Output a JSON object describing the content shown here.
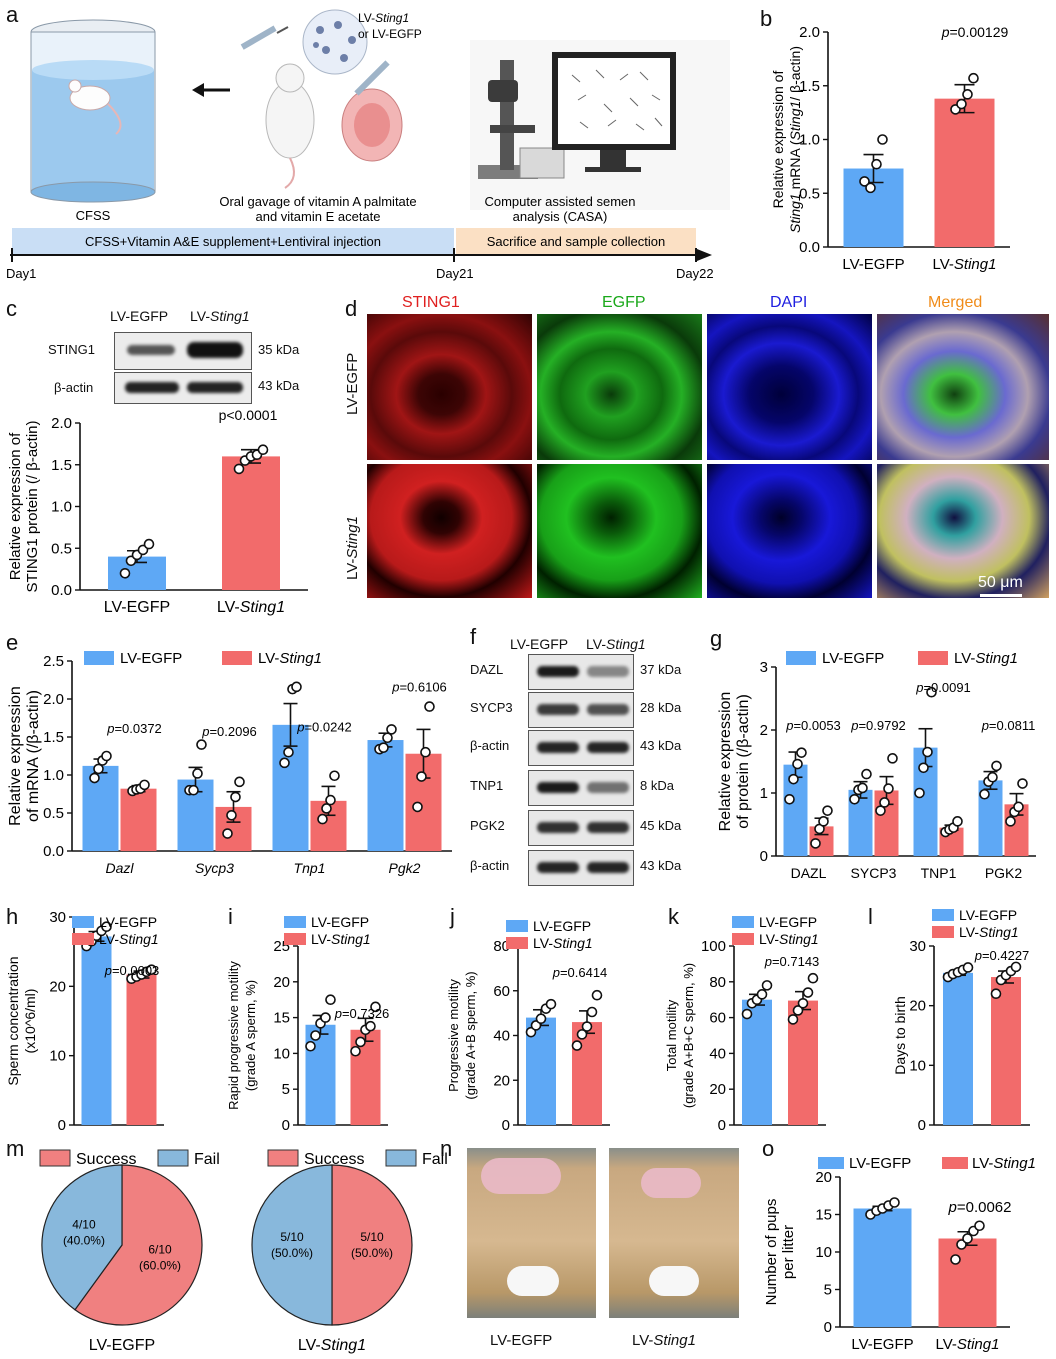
{
  "panel_letters": [
    "a",
    "b",
    "c",
    "d",
    "e",
    "f",
    "g",
    "h",
    "i",
    "j",
    "k",
    "l",
    "m",
    "n",
    "o"
  ],
  "colors": {
    "egfp": "#5ea8f5",
    "sting": "#f26b6b",
    "pie_success": "#f08080",
    "pie_fail": "#88b8dc",
    "timeline_blue": "#c9def5",
    "timeline_peach": "#fbe0c4"
  },
  "panel_a": {
    "cfss_label": "CFSS",
    "injection_label_1": "LV-",
    "injection_label_gene": "Sting1",
    "injection_label_2": "or LV-EGFP",
    "gavage_line1": "Oral gavage of vitamin A palmitate",
    "gavage_line2": "and  vitamin E acetate",
    "casa_line1": "Computer assisted semen",
    "casa_line2": "analysis (CASA)",
    "bar1": "CFSS+Vitamin A&E supplement+Lentiviral injection",
    "bar2": "Sacrifice and sample collection",
    "day1": "Day1",
    "day21": "Day21",
    "day22": "Day22"
  },
  "panel_c_blot": {
    "lanes": [
      "LV-EGFP",
      "LV-Sting1"
    ],
    "rows": [
      {
        "name": "STING1",
        "kda": "35 kDa"
      },
      {
        "name": "β-actin",
        "kda": "43 kDa"
      }
    ]
  },
  "panel_d": {
    "channels": [
      "STING1",
      "EGFP",
      "DAPI",
      "Merged"
    ],
    "rows": [
      "LV-EGFP",
      "LV-Sting1"
    ],
    "scale": "50 μm"
  },
  "panel_f_blot": {
    "lanes": [
      "LV-EGFP",
      "LV-Sting1"
    ],
    "rows": [
      {
        "name": "DAZL",
        "kda": "37 kDa"
      },
      {
        "name": "SYCP3",
        "kda": "28 kDa"
      },
      {
        "name": "β-actin",
        "kda": "43 kDa"
      },
      {
        "name": "TNP1",
        "kda": "8 kDa"
      },
      {
        "name": "PGK2",
        "kda": "45 kDa"
      },
      {
        "name": "β-actin",
        "kda": "43 kDa"
      }
    ]
  },
  "panel_n": {
    "labels": [
      "LV-EGFP",
      "LV-Sting1"
    ]
  },
  "chart_data": [
    {
      "id": "b",
      "type": "bar",
      "categories": [
        "LV-EGFP",
        "LV-Sting1"
      ],
      "values": [
        0.73,
        1.38
      ],
      "errors": [
        0.13,
        0.13
      ],
      "points": [
        [
          0.61,
          0.55,
          0.77,
          1.0
        ],
        [
          1.28,
          1.33,
          1.42,
          1.57
        ]
      ],
      "ylabel": "Relative expression of Sting1 mRNA (Sting1/ β-actin)",
      "ylim": [
        0,
        2.0
      ],
      "yticks": [
        0.0,
        0.5,
        1.0,
        1.5,
        2.0
      ],
      "pvalue": "p=0.00129"
    },
    {
      "id": "c",
      "type": "bar",
      "categories": [
        "LV-EGFP",
        "LV-Sting1"
      ],
      "values": [
        0.4,
        1.6
      ],
      "errors": [
        0.07,
        0.08
      ],
      "points": [
        [
          0.2,
          0.35,
          0.42,
          0.48,
          0.55
        ],
        [
          1.45,
          1.55,
          1.6,
          1.62,
          1.68
        ]
      ],
      "ylabel": "Relative expression of STING1 protein (/ β-actin)",
      "ylim": [
        0,
        2.0
      ],
      "yticks": [
        0.0,
        0.5,
        1.0,
        1.5,
        2.0
      ],
      "pvalue": "p<0.0001"
    },
    {
      "id": "e",
      "type": "grouped_bar",
      "categories": [
        "Dazl",
        "Sycp3",
        "Tnp1",
        "Pgk2"
      ],
      "series": [
        {
          "name": "LV-EGFP",
          "values": [
            1.12,
            0.94,
            1.66,
            1.46
          ],
          "errors": [
            0.09,
            0.16,
            0.28,
            0.09
          ],
          "points": [
            [
              0.96,
              1.08,
              1.19,
              1.25
            ],
            [
              0.8,
              0.8,
              1.02,
              1.4
            ],
            [
              1.16,
              1.3,
              2.13,
              2.16
            ],
            [
              1.34,
              1.36,
              1.49,
              1.6
            ]
          ]
        },
        {
          "name": "LV-Sting1",
          "values": [
            0.82,
            0.58,
            0.66,
            1.28
          ],
          "errors": [
            0.04,
            0.2,
            0.19,
            0.32
          ],
          "points": [
            [
              0.79,
              0.81,
              0.82,
              0.87
            ],
            [
              0.23,
              0.47,
              0.71,
              0.91
            ],
            [
              0.42,
              0.56,
              0.67,
              0.99
            ],
            [
              0.58,
              0.98,
              1.3,
              1.9
            ]
          ]
        }
      ],
      "ylabel": "Relative expression of mRNA (/β-actin)",
      "ylim": [
        0,
        2.5
      ],
      "yticks": [
        0.0,
        0.5,
        1.0,
        1.5,
        2.0,
        2.5
      ],
      "pvalues": [
        "p=0.0372",
        "p=0.2096",
        "p=0.0242",
        "p=0.6106"
      ]
    },
    {
      "id": "g",
      "type": "grouped_bar",
      "categories": [
        "DAZL",
        "SYCP3",
        "TNP1",
        "PGK2"
      ],
      "series": [
        {
          "name": "LV-EGFP",
          "values": [
            1.45,
            1.05,
            1.72,
            1.2
          ],
          "errors": [
            0.2,
            0.13,
            0.3,
            0.14
          ],
          "points": [
            [
              0.9,
              1.22,
              1.46,
              1.64
            ],
            [
              0.9,
              1.05,
              1.08,
              1.3
            ],
            [
              1.0,
              1.4,
              1.65,
              2.6
            ],
            [
              0.98,
              1.18,
              1.25,
              1.43
            ]
          ]
        },
        {
          "name": "LV-Sting1",
          "values": [
            0.47,
            1.04,
            0.45,
            0.82
          ],
          "errors": [
            0.13,
            0.22,
            0.04,
            0.17
          ],
          "points": [
            [
              0.2,
              0.43,
              0.55,
              0.72
            ],
            [
              0.72,
              0.85,
              1.07,
              1.55
            ],
            [
              0.38,
              0.42,
              0.45,
              0.55
            ],
            [
              0.55,
              0.7,
              0.78,
              1.15
            ]
          ]
        }
      ],
      "ylabel": "Relative expression of protein (/β-actin)",
      "ylim": [
        0,
        3
      ],
      "yticks": [
        0,
        1,
        2,
        3
      ],
      "pvalues": [
        "p=0.0053",
        "p=0.9792",
        "p=0.0091",
        "p=0.0811"
      ]
    },
    {
      "id": "h",
      "type": "bar",
      "categories": [
        "LV-EGFP",
        "LV-Sting1"
      ],
      "values": [
        27.2,
        21.7
      ],
      "errors": [
        0.7,
        0.5
      ],
      "points": [
        [
          25.8,
          26.5,
          27.3,
          28.0,
          28.6
        ],
        [
          21.1,
          21.4,
          21.7,
          22.1,
          22.4
        ]
      ],
      "ylabel": "Sperm concentration (x10^6/ml)",
      "ylim": [
        0,
        30
      ],
      "yticks": [
        0,
        10,
        20,
        30
      ],
      "pvalue": "p=0.0003"
    },
    {
      "id": "i",
      "type": "bar",
      "categories": [
        "LV-EGFP",
        "LV-Sting1"
      ],
      "values": [
        14.0,
        13.3
      ],
      "errors": [
        1.3,
        1.6
      ],
      "points": [
        [
          11.0,
          12.5,
          14.2,
          15.0,
          17.5
        ],
        [
          10.3,
          11.6,
          13.3,
          13.8,
          16.5
        ]
      ],
      "ylabel": "Rapid progressive motility (grade A sperm, %)",
      "ylim": [
        0,
        25
      ],
      "yticks": [
        0,
        5,
        10,
        15,
        20,
        25
      ],
      "pvalue": "p=0.7326"
    },
    {
      "id": "j",
      "type": "bar",
      "categories": [
        "LV-EGFP",
        "LV-Sting1"
      ],
      "values": [
        48.0,
        46.0
      ],
      "errors": [
        3.5,
        5.0
      ],
      "points": [
        [
          41.5,
          44.5,
          47.5,
          52.0,
          54.0
        ],
        [
          35.5,
          40.5,
          44.0,
          50.5,
          58.0
        ]
      ],
      "ylabel": "Progressive motility (grade A+B sperm, %)",
      "ylim": [
        0,
        80
      ],
      "yticks": [
        0,
        20,
        40,
        60,
        80
      ],
      "pvalue": "p=0.6414"
    },
    {
      "id": "k",
      "type": "bar",
      "categories": [
        "LV-EGFP",
        "LV-Sting1"
      ],
      "values": [
        70.0,
        69.5
      ],
      "errors": [
        3.0,
        5.0
      ],
      "points": [
        [
          62.0,
          68.0,
          70.0,
          73.0,
          78.0
        ],
        [
          59.0,
          64.0,
          68.0,
          74.0,
          82.0
        ]
      ],
      "ylabel": "Total motility (grade A+B+C sperm, %)",
      "ylim": [
        0,
        100
      ],
      "yticks": [
        0,
        20,
        40,
        60,
        80,
        100
      ],
      "pvalue": "p=0.7143"
    },
    {
      "id": "l",
      "type": "bar",
      "categories": [
        "LV-EGFP",
        "LV-Sting1"
      ],
      "values": [
        25.5,
        24.8
      ],
      "errors": [
        0.4,
        1.0
      ],
      "points": [
        [
          24.8,
          25.3,
          25.6,
          26.0,
          26.4
        ],
        [
          22.0,
          24.3,
          25.1,
          25.8,
          26.5
        ]
      ],
      "ylabel": "Days to birth",
      "ylim": [
        0,
        30
      ],
      "yticks": [
        0,
        10,
        20,
        30
      ],
      "pvalue": "p=0.4227"
    },
    {
      "id": "m",
      "type": "pie",
      "legend": [
        "Success",
        "Fail"
      ],
      "charts": [
        {
          "title": "LV-EGFP",
          "slices": [
            {
              "name": "Success",
              "value": 6,
              "label1": "6/10",
              "label2": "(60.0%)"
            },
            {
              "name": "Fail",
              "value": 4,
              "label1": "4/10",
              "label2": "(40.0%)"
            }
          ]
        },
        {
          "title": "LV-Sting1",
          "slices": [
            {
              "name": "Success",
              "value": 5,
              "label1": "5/10",
              "label2": "(50.0%)"
            },
            {
              "name": "Fail",
              "value": 5,
              "label1": "5/10",
              "label2": "(50.0%)"
            }
          ]
        }
      ]
    },
    {
      "id": "o",
      "type": "bar",
      "categories": [
        "LV-EGFP",
        "LV-Sting1"
      ],
      "values": [
        15.8,
        11.8
      ],
      "errors": [
        0.3,
        0.9
      ],
      "points": [
        [
          15.0,
          15.5,
          15.8,
          16.2,
          16.6
        ],
        [
          9.0,
          11.0,
          11.8,
          12.8,
          13.5
        ]
      ],
      "ylabel": "Number of pups per litter",
      "ylim": [
        0,
        20
      ],
      "yticks": [
        0,
        5,
        10,
        15,
        20
      ],
      "pvalue": "p=0.0062"
    }
  ]
}
